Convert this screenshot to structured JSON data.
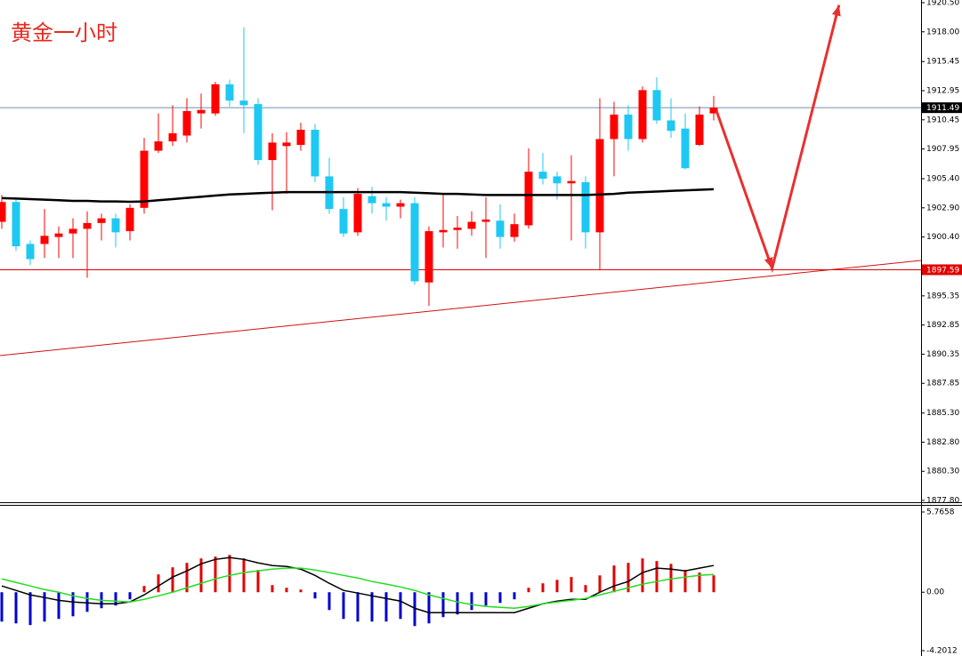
{
  "chart_data": [
    {
      "type": "candlestick",
      "title": "黄金一小时",
      "up_color": "#ff0000",
      "down_color": "#1ec8f2",
      "open": [
        1901.7,
        1903.4,
        1899.8,
        1899.8,
        1900.4,
        1900.7,
        1901.1,
        1901.6,
        1902.0,
        1900.9,
        1902.9,
        1907.8,
        1908.6,
        1909.1,
        1911.0,
        1911.0,
        1913.5,
        1912.1,
        1911.8,
        1907.0,
        1908.2,
        1908.3,
        1909.6,
        1905.6,
        1902.8,
        1900.8,
        1903.9,
        1903.3,
        1903.0,
        1903.3,
        1896.5,
        1900.8,
        1901.0,
        1901.1,
        1901.7,
        1901.8,
        1900.4,
        1901.4,
        1906.0,
        1905.6,
        1905.0,
        1905.1,
        1900.8,
        1908.8,
        1910.9,
        1908.8,
        1913.0,
        1910.4,
        1909.7,
        1908.3,
        1911.0
      ],
      "high": [
        1904.0,
        1903.8,
        1900.1,
        1902.8,
        1901.3,
        1902.0,
        1902.6,
        1902.4,
        1902.4,
        1903.2,
        1908.9,
        1911.0,
        1911.7,
        1912.3,
        1912.7,
        1913.7,
        1913.9,
        1918.4,
        1912.3,
        1909.3,
        1909.4,
        1910.2,
        1910.1,
        1907.2,
        1903.8,
        1904.6,
        1904.7,
        1903.8,
        1903.6,
        1903.8,
        1901.3,
        1904.0,
        1902.2,
        1902.6,
        1903.8,
        1903.2,
        1902.4,
        1908.0,
        1907.6,
        1906.0,
        1907.4,
        1905.6,
        1912.3,
        1912.0,
        1911.7,
        1913.3,
        1914.1,
        1912.3,
        1911.0,
        1911.6,
        1912.5
      ],
      "low": [
        1901.1,
        1899.2,
        1898.0,
        1898.6,
        1898.6,
        1898.6,
        1896.9,
        1900.1,
        1899.5,
        1900.1,
        1902.4,
        1907.6,
        1908.2,
        1908.5,
        1909.7,
        1910.8,
        1911.6,
        1909.3,
        1906.6,
        1902.7,
        1904.1,
        1907.8,
        1905.1,
        1902.4,
        1900.4,
        1900.5,
        1902.4,
        1901.8,
        1902.0,
        1896.3,
        1894.5,
        1899.5,
        1899.4,
        1900.5,
        1898.6,
        1899.4,
        1900.0,
        1901.1,
        1904.9,
        1903.6,
        1900.1,
        1899.4,
        1897.6,
        1905.6,
        1907.8,
        1908.5,
        1910.1,
        1908.9,
        1906.2,
        1908.2,
        1910.4
      ],
      "close": [
        1903.4,
        1899.6,
        1898.5,
        1900.5,
        1900.7,
        1901.1,
        1901.6,
        1902.0,
        1900.8,
        1902.9,
        1907.8,
        1908.6,
        1909.3,
        1911.2,
        1911.3,
        1913.5,
        1912.1,
        1911.7,
        1907.0,
        1908.5,
        1908.5,
        1909.6,
        1905.6,
        1902.8,
        1900.7,
        1904.1,
        1903.3,
        1903.0,
        1903.3,
        1896.6,
        1900.9,
        1901.0,
        1901.2,
        1901.7,
        1901.9,
        1900.4,
        1901.5,
        1906.0,
        1905.4,
        1905.0,
        1905.2,
        1900.8,
        1908.8,
        1910.9,
        1908.8,
        1913.0,
        1910.4,
        1909.5,
        1906.3,
        1910.9,
        1911.49
      ],
      "series": [
        {
          "color": "#000000",
          "values": [
            1903.73,
            1903.7,
            1903.65,
            1903.6,
            1903.55,
            1903.5,
            1903.5,
            1903.45,
            1903.45,
            1903.42,
            1903.45,
            1903.55,
            1903.65,
            1903.75,
            1903.85,
            1903.95,
            1904.05,
            1904.1,
            1904.15,
            1904.2,
            1904.25,
            1904.25,
            1904.25,
            1904.25,
            1904.25,
            1904.25,
            1904.25,
            1904.25,
            1904.25,
            1904.2,
            1904.15,
            1904.1,
            1904.1,
            1904.05,
            1904.0,
            1904.0,
            1904.0,
            1904.0,
            1904.0,
            1904.0,
            1904.0,
            1904.0,
            1904.05,
            1904.1,
            1904.2,
            1904.25,
            1904.3,
            1904.35,
            1904.4,
            1904.45,
            1904.5
          ]
        }
      ],
      "hlines": [
        {
          "value": 1911.49,
          "color": "#6f8faf",
          "label_color": "#000000"
        },
        {
          "value": 1897.59,
          "color": "#e00000",
          "label_color": "#e00000"
        }
      ],
      "trendline": {
        "color": "#d01010",
        "x": [
          -0.125,
          64.56
        ],
        "y": [
          1890.23,
          1898.39
        ]
      },
      "arrow": {
        "color": "#e83030",
        "x": [
          50.2,
          54.1,
          58.8
        ],
        "y": [
          1911.2,
          1897.7,
          1920.3
        ]
      },
      "ylim": [
        1877.8,
        1920.5
      ],
      "yticks": [
        {
          "value": 1920.5,
          "label": "1920.50"
        },
        {
          "value": 1918,
          "label": "1918.00"
        },
        {
          "value": 1915.45,
          "label": "1915.45"
        },
        {
          "value": 1912.95,
          "label": "1912.95"
        },
        {
          "value": 1910.45,
          "label": "1910.45"
        },
        {
          "value": 1907.95,
          "label": "1907.95"
        },
        {
          "value": 1905.4,
          "label": "1905.40"
        },
        {
          "value": 1902.9,
          "label": "1902.90"
        },
        {
          "value": 1900.4,
          "label": "1900.40"
        },
        {
          "value": 1895.35,
          "label": "1895.35"
        },
        {
          "value": 1892.85,
          "label": "1892.85"
        },
        {
          "value": 1890.35,
          "label": "1890.35"
        },
        {
          "value": 1887.85,
          "label": "1887.85"
        },
        {
          "value": 1885.3,
          "label": "1885.30"
        },
        {
          "value": 1882.8,
          "label": "1882.80"
        },
        {
          "value": 1880.3,
          "label": "1880.30"
        },
        {
          "value": 1877.8,
          "label": "1877.80"
        }
      ]
    },
    {
      "type": "macd",
      "up_color": "#e00000",
      "down_color": "#0000d0",
      "histogram": [
        -2.11,
        -2.24,
        -2.36,
        -2.11,
        -1.92,
        -1.73,
        -1.41,
        -1.15,
        -0.96,
        -0.51,
        0.45,
        1.28,
        1.79,
        2.11,
        2.43,
        2.56,
        2.68,
        2.43,
        1.6,
        0.51,
        0.32,
        0.19,
        -0.45,
        -1.28,
        -1.92,
        -2.11,
        -2.11,
        -2.11,
        -1.92,
        -2.43,
        -2.24,
        -1.79,
        -1.6,
        -1.28,
        -0.96,
        -0.77,
        -0.51,
        0.32,
        0.64,
        0.89,
        1.09,
        0.51,
        1.21,
        1.92,
        2.11,
        2.43,
        2.24,
        2.04,
        1.6,
        1.41,
        1.21
      ],
      "series": [
        {
          "color": "#000000",
          "values": [
            0.45,
            0.13,
            -0.19,
            -0.38,
            -0.58,
            -0.7,
            -0.77,
            -0.83,
            -0.83,
            -0.7,
            -0.19,
            0.45,
            1.09,
            1.53,
            2.04,
            2.36,
            2.49,
            2.36,
            2.11,
            1.92,
            1.85,
            1.66,
            1.21,
            0.64,
            0.13,
            -0.06,
            -0.26,
            -0.45,
            -0.64,
            -1.15,
            -1.47,
            -1.47,
            -1.47,
            -1.47,
            -1.47,
            -1.47,
            -1.47,
            -1.15,
            -0.83,
            -0.64,
            -0.51,
            -0.51,
            0,
            0.45,
            0.77,
            1.41,
            1.73,
            1.66,
            1.53,
            1.73,
            1.92
          ]
        },
        {
          "color": "#22dd22",
          "values": [
            0.96,
            0.7,
            0.45,
            0.19,
            0,
            -0.26,
            -0.45,
            -0.58,
            -0.64,
            -0.7,
            -0.51,
            -0.26,
            0,
            0.32,
            0.64,
            0.96,
            1.21,
            1.41,
            1.53,
            1.66,
            1.73,
            1.73,
            1.6,
            1.41,
            1.21,
            1.02,
            0.77,
            0.58,
            0.38,
            0.13,
            -0.19,
            -0.45,
            -0.7,
            -0.89,
            -1.02,
            -1.09,
            -1.15,
            -1.02,
            -0.83,
            -0.7,
            -0.58,
            -0.45,
            -0.19,
            0.06,
            0.32,
            0.58,
            0.77,
            0.96,
            1.09,
            1.21,
            1.28
          ]
        }
      ],
      "ylim": [
        -4.2012,
        5.7658
      ],
      "yticks": [
        5.7658,
        {
          "value": 0,
          "label": "0.00"
        },
        -4.2012
      ]
    }
  ]
}
